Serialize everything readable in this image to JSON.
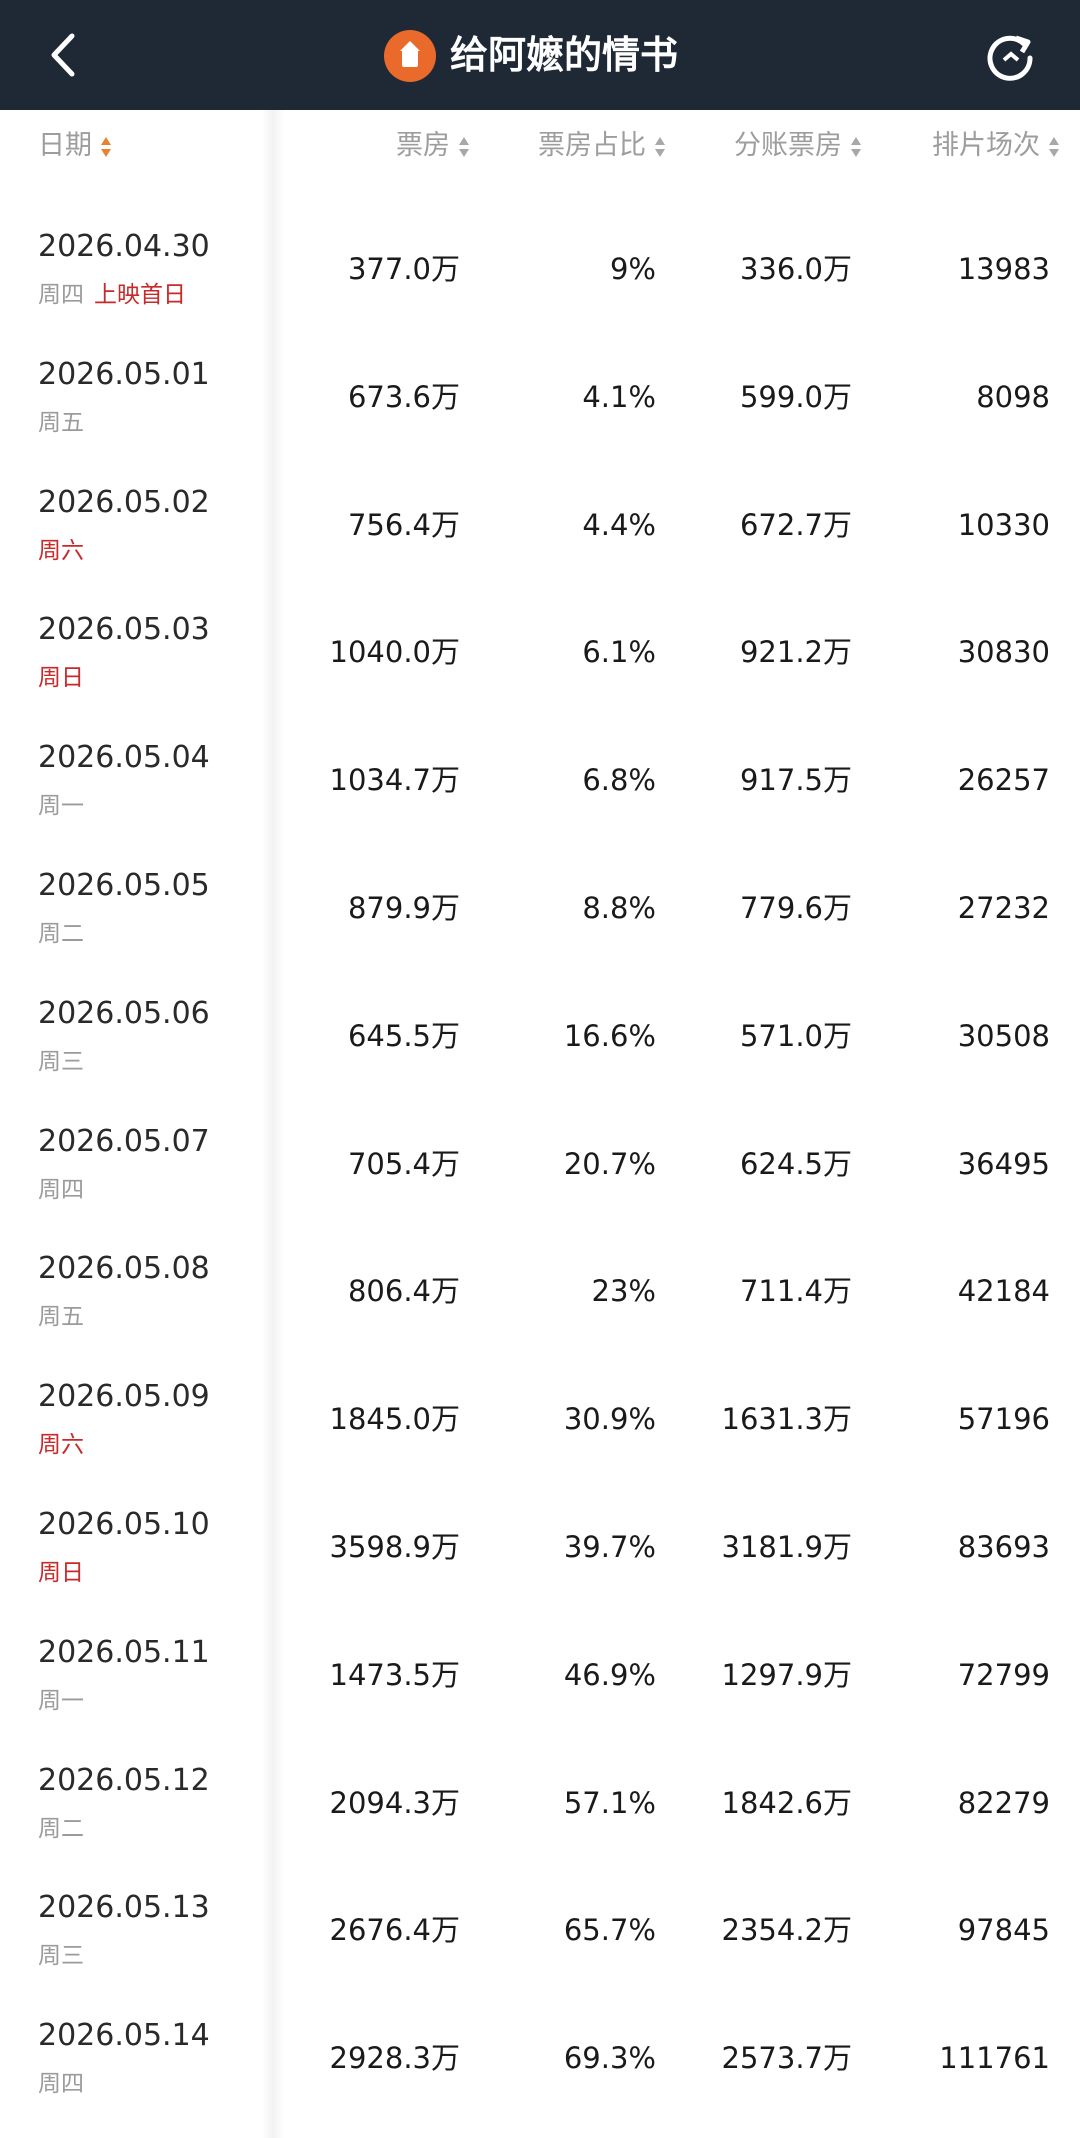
{
  "header": {
    "title": "给阿嬷的情书"
  },
  "table": {
    "columns": [
      "日期",
      "票房",
      "票房占比",
      "分账票房",
      "排片场次"
    ],
    "rows": [
      {
        "date": "2026.04.30",
        "day": "周四",
        "day_color": "#9b9b9b",
        "note": "上映首日",
        "box_office": "377.0万",
        "share": "9%",
        "split": "336.0万",
        "shows": 13983
      },
      {
        "date": "2026.05.01",
        "day": "周五",
        "day_color": "#9b9b9b",
        "box_office": "673.6万",
        "share": "4.1%",
        "split": "599.0万",
        "shows": 8098
      },
      {
        "date": "2026.05.02",
        "day": "周六",
        "day_color": "#c62a2a",
        "box_office": "756.4万",
        "share": "4.4%",
        "split": "672.7万",
        "shows": 10330
      },
      {
        "date": "2026.05.03",
        "day": "周日",
        "day_color": "#c62a2a",
        "box_office": "1040.0万",
        "share": "6.1%",
        "split": "921.2万",
        "shows": 30830
      },
      {
        "date": "2026.05.04",
        "day": "周一",
        "day_color": "#9b9b9b",
        "box_office": "1034.7万",
        "share": "6.8%",
        "split": "917.5万",
        "shows": 26257
      },
      {
        "date": "2026.05.05",
        "day": "周二",
        "day_color": "#9b9b9b",
        "box_office": "879.9万",
        "share": "8.8%",
        "split": "779.6万",
        "shows": 27232
      },
      {
        "date": "2026.05.06",
        "day": "周三",
        "day_color": "#9b9b9b",
        "box_office": "645.5万",
        "share": "16.6%",
        "split": "571.0万",
        "shows": 30508
      },
      {
        "date": "2026.05.07",
        "day": "周四",
        "day_color": "#9b9b9b",
        "box_office": "705.4万",
        "share": "20.7%",
        "split": "624.5万",
        "shows": 36495
      },
      {
        "date": "2026.05.08",
        "day": "周五",
        "day_color": "#9b9b9b",
        "box_office": "806.4万",
        "share": "23%",
        "split": "711.4万",
        "shows": 42184
      },
      {
        "date": "2026.05.09",
        "day": "周六",
        "day_color": "#c62a2a",
        "box_office": "1845.0万",
        "share": "30.9%",
        "split": "1631.3万",
        "shows": 57196
      },
      {
        "date": "2026.05.10",
        "day": "周日",
        "day_color": "#c62a2a",
        "box_office": "3598.9万",
        "share": "39.7%",
        "split": "3181.9万",
        "shows": 83693
      },
      {
        "date": "2026.05.11",
        "day": "周一",
        "day_color": "#9b9b9b",
        "box_office": "1473.5万",
        "share": "46.9%",
        "split": "1297.9万",
        "shows": 72799
      },
      {
        "date": "2026.05.12",
        "day": "周二",
        "day_color": "#9b9b9b",
        "box_office": "2094.3万",
        "share": "57.1%",
        "split": "1842.6万",
        "shows": 82279
      },
      {
        "date": "2026.05.13",
        "day": "周三",
        "day_color": "#9b9b9b",
        "box_office": "2676.4万",
        "share": "65.7%",
        "split": "2354.2万",
        "shows": 97845
      },
      {
        "date": "2026.05.14",
        "day": "周四",
        "day_color": "#9b9b9b",
        "box_office": "2928.3万",
        "share": "69.3%",
        "split": "2573.7万",
        "shows": 111761
      }
    ]
  }
}
